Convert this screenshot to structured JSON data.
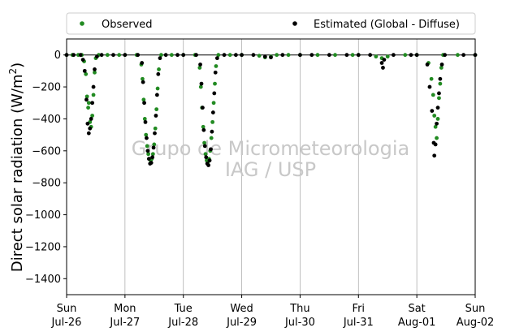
{
  "chart_data": {
    "type": "scatter",
    "ylabel_main": "Direct solar radiation (W/m",
    "ylabel_sup": "2",
    "ylabel_close": ")",
    "ylim": [
      -1500,
      100
    ],
    "yticks": [
      0,
      -200,
      -400,
      -600,
      -800,
      -1000,
      -1200,
      -1400
    ],
    "xlim": [
      "2020-07-26 00:00",
      "2020-08-02 00:00"
    ],
    "xticks": [
      {
        "day": "Sun",
        "date": "Jul-26"
      },
      {
        "day": "Mon",
        "date": "Jul-27"
      },
      {
        "day": "Tue",
        "date": "Jul-28"
      },
      {
        "day": "Wed",
        "date": "Jul-29"
      },
      {
        "day": "Thu",
        "date": "Jul-30"
      },
      {
        "day": "Fri",
        "date": "Jul-31"
      },
      {
        "day": "Sat",
        "date": "Aug-01"
      },
      {
        "day": "Sun",
        "date": "Aug-02"
      }
    ],
    "grid": "vertical",
    "legend_placement": "top",
    "watermark": [
      "Grupo de Micrometeorologia",
      "IAG / USP"
    ],
    "series": [
      {
        "name": "Observed",
        "color": "#228b22",
        "points": [
          [
            0.0,
            0
          ],
          [
            0.1,
            0
          ],
          [
            0.2,
            0
          ],
          [
            0.26,
            0
          ],
          [
            0.3,
            -40
          ],
          [
            0.33,
            -120
          ],
          [
            0.35,
            -260
          ],
          [
            0.37,
            -330
          ],
          [
            0.38,
            -300
          ],
          [
            0.4,
            -420
          ],
          [
            0.42,
            -450
          ],
          [
            0.44,
            -380
          ],
          [
            0.46,
            -250
          ],
          [
            0.48,
            -110
          ],
          [
            0.5,
            -20
          ],
          [
            0.55,
            0
          ],
          [
            0.7,
            0
          ],
          [
            0.9,
            0
          ],
          [
            1.0,
            0
          ],
          [
            1.2,
            0
          ],
          [
            1.28,
            -60
          ],
          [
            1.3,
            -150
          ],
          [
            1.32,
            -280
          ],
          [
            1.34,
            -400
          ],
          [
            1.36,
            -500
          ],
          [
            1.38,
            -570
          ],
          [
            1.4,
            -620
          ],
          [
            1.42,
            -650
          ],
          [
            1.44,
            -660
          ],
          [
            1.46,
            -650
          ],
          [
            1.48,
            -620
          ],
          [
            1.5,
            -560
          ],
          [
            1.52,
            -460
          ],
          [
            1.54,
            -340
          ],
          [
            1.56,
            -210
          ],
          [
            1.58,
            -90
          ],
          [
            1.62,
            0
          ],
          [
            1.8,
            0
          ],
          [
            2.0,
            0
          ],
          [
            2.2,
            0
          ],
          [
            2.28,
            -80
          ],
          [
            2.3,
            -200
          ],
          [
            2.32,
            -330
          ],
          [
            2.34,
            -450
          ],
          [
            2.36,
            -550
          ],
          [
            2.38,
            -620
          ],
          [
            2.4,
            -660
          ],
          [
            2.42,
            -670
          ],
          [
            2.44,
            -650
          ],
          [
            2.46,
            -600
          ],
          [
            2.48,
            -520
          ],
          [
            2.5,
            -420
          ],
          [
            2.52,
            -300
          ],
          [
            2.54,
            -180
          ],
          [
            2.56,
            -70
          ],
          [
            2.6,
            0
          ],
          [
            2.8,
            0
          ],
          [
            3.0,
            0
          ],
          [
            3.3,
            -5
          ],
          [
            3.4,
            -15
          ],
          [
            3.5,
            -10
          ],
          [
            3.6,
            0
          ],
          [
            3.8,
            0
          ],
          [
            4.0,
            0
          ],
          [
            4.3,
            0
          ],
          [
            4.6,
            0
          ],
          [
            4.9,
            0
          ],
          [
            5.0,
            0
          ],
          [
            5.3,
            -10
          ],
          [
            5.4,
            -20
          ],
          [
            5.5,
            -10
          ],
          [
            5.8,
            0
          ],
          [
            6.0,
            0
          ],
          [
            6.2,
            -50
          ],
          [
            6.25,
            -150
          ],
          [
            6.28,
            -250
          ],
          [
            6.3,
            -380
          ],
          [
            6.32,
            -450
          ],
          [
            6.34,
            -520
          ],
          [
            6.36,
            -400
          ],
          [
            6.38,
            -270
          ],
          [
            6.4,
            -180
          ],
          [
            6.42,
            -80
          ],
          [
            6.45,
            0
          ],
          [
            6.7,
            0
          ],
          [
            7.0,
            0
          ]
        ]
      },
      {
        "name": "Estimated (Global - Diffuse)",
        "color": "#000000",
        "points": [
          [
            0.0,
            0
          ],
          [
            0.12,
            0
          ],
          [
            0.24,
            0
          ],
          [
            0.28,
            -30
          ],
          [
            0.31,
            -100
          ],
          [
            0.34,
            -280
          ],
          [
            0.36,
            -430
          ],
          [
            0.38,
            -490
          ],
          [
            0.4,
            -460
          ],
          [
            0.42,
            -400
          ],
          [
            0.44,
            -300
          ],
          [
            0.46,
            -200
          ],
          [
            0.48,
            -90
          ],
          [
            0.52,
            -10
          ],
          [
            0.6,
            0
          ],
          [
            0.8,
            0
          ],
          [
            1.0,
            0
          ],
          [
            1.22,
            0
          ],
          [
            1.29,
            -50
          ],
          [
            1.31,
            -170
          ],
          [
            1.33,
            -300
          ],
          [
            1.35,
            -420
          ],
          [
            1.37,
            -520
          ],
          [
            1.39,
            -600
          ],
          [
            1.41,
            -650
          ],
          [
            1.43,
            -680
          ],
          [
            1.45,
            -675
          ],
          [
            1.47,
            -640
          ],
          [
            1.49,
            -580
          ],
          [
            1.51,
            -490
          ],
          [
            1.53,
            -380
          ],
          [
            1.55,
            -250
          ],
          [
            1.57,
            -120
          ],
          [
            1.6,
            -20
          ],
          [
            1.7,
            0
          ],
          [
            1.9,
            0
          ],
          [
            2.0,
            0
          ],
          [
            2.22,
            0
          ],
          [
            2.29,
            -60
          ],
          [
            2.31,
            -180
          ],
          [
            2.33,
            -330
          ],
          [
            2.35,
            -470
          ],
          [
            2.37,
            -570
          ],
          [
            2.39,
            -640
          ],
          [
            2.41,
            -680
          ],
          [
            2.43,
            -690
          ],
          [
            2.45,
            -660
          ],
          [
            2.47,
            -590
          ],
          [
            2.49,
            -480
          ],
          [
            2.51,
            -360
          ],
          [
            2.53,
            -240
          ],
          [
            2.55,
            -110
          ],
          [
            2.58,
            -20
          ],
          [
            2.7,
            0
          ],
          [
            2.9,
            0
          ],
          [
            3.0,
            0
          ],
          [
            3.2,
            0
          ],
          [
            3.4,
            -10
          ],
          [
            3.5,
            -15
          ],
          [
            3.7,
            0
          ],
          [
            4.0,
            0
          ],
          [
            4.2,
            0
          ],
          [
            4.5,
            0
          ],
          [
            4.8,
            0
          ],
          [
            5.0,
            0
          ],
          [
            5.2,
            0
          ],
          [
            5.4,
            -50
          ],
          [
            5.42,
            -80
          ],
          [
            5.44,
            -30
          ],
          [
            5.6,
            0
          ],
          [
            5.9,
            0
          ],
          [
            6.0,
            0
          ],
          [
            6.18,
            -60
          ],
          [
            6.22,
            -200
          ],
          [
            6.26,
            -350
          ],
          [
            6.29,
            -550
          ],
          [
            6.3,
            -630
          ],
          [
            6.32,
            -560
          ],
          [
            6.34,
            -430
          ],
          [
            6.36,
            -330
          ],
          [
            6.38,
            -240
          ],
          [
            6.4,
            -150
          ],
          [
            6.43,
            -60
          ],
          [
            6.48,
            0
          ],
          [
            6.8,
            0
          ],
          [
            7.0,
            0
          ]
        ]
      }
    ]
  }
}
